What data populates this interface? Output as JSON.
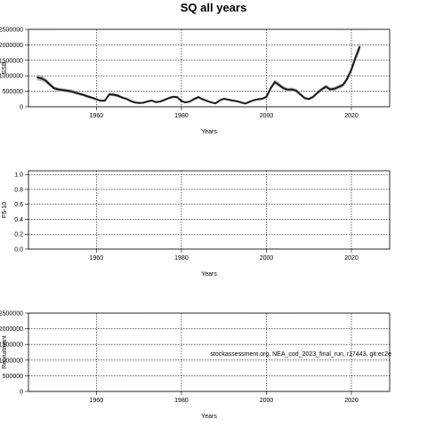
{
  "figure_title": "SQ all years",
  "chart_data": [
    {
      "type": "line",
      "panel": "SSB",
      "xlabel": "Years",
      "ylabel": "SSB",
      "xlim": [
        1944,
        2029
      ],
      "ylim": [
        0,
        2500000
      ],
      "xticks": [
        1960,
        1980,
        2000,
        2020
      ],
      "yticks": [
        0,
        500000,
        1000000,
        1500000,
        2000000,
        2500000
      ],
      "ytick_labels": [
        "0",
        "500000",
        "1000000",
        "1500000",
        "2000000",
        "2500000"
      ],
      "grid": true,
      "series": [
        {
          "x": [
            1946,
            1947,
            1948,
            1949,
            1950,
            1951,
            1952,
            1953,
            1954,
            1955,
            1956,
            1957,
            1958,
            1959,
            1960,
            1961,
            1962,
            1963,
            1964,
            1965,
            1966,
            1967,
            1968,
            1969,
            1970,
            1971,
            1972,
            1973,
            1974,
            1975,
            1976,
            1977,
            1978,
            1979,
            1980,
            1981,
            1982,
            1983,
            1984,
            1985,
            1986,
            1987,
            1988,
            1989,
            1990,
            1991,
            1992,
            1993,
            1994,
            1995,
            1996,
            1997,
            1998,
            1999,
            2000,
            2001,
            2002,
            2003,
            2004,
            2005,
            2006,
            2007,
            2008,
            2009,
            2010,
            2011,
            2012,
            2013,
            2014,
            2015,
            2016,
            2017,
            2018,
            2019,
            2020,
            2021,
            2022
          ],
          "y": [
            950000,
            920000,
            850000,
            720000,
            600000,
            560000,
            540000,
            520000,
            500000,
            460000,
            420000,
            380000,
            330000,
            290000,
            240000,
            190000,
            200000,
            400000,
            390000,
            360000,
            300000,
            260000,
            190000,
            140000,
            120000,
            130000,
            170000,
            200000,
            150000,
            170000,
            220000,
            280000,
            320000,
            310000,
            180000,
            140000,
            170000,
            250000,
            310000,
            240000,
            190000,
            140000,
            110000,
            200000,
            260000,
            230000,
            200000,
            180000,
            140000,
            100000,
            160000,
            210000,
            240000,
            260000,
            320000,
            600000,
            800000,
            700000,
            600000,
            550000,
            560000,
            520000,
            400000,
            280000,
            250000,
            320000,
            450000,
            560000,
            650000,
            560000,
            580000,
            640000,
            700000,
            900000,
            1200000,
            1600000,
            1950000
          ],
          "lower": [
            850000,
            830000,
            770000,
            650000,
            540000,
            500000,
            480000,
            460000,
            440000,
            400000,
            370000,
            330000,
            280000,
            250000,
            200000,
            160000,
            170000,
            350000,
            340000,
            310000,
            260000,
            220000,
            160000,
            110000,
            95000,
            105000,
            140000,
            170000,
            125000,
            140000,
            185000,
            240000,
            280000,
            270000,
            150000,
            115000,
            140000,
            210000,
            270000,
            205000,
            160000,
            115000,
            90000,
            170000,
            225000,
            195000,
            170000,
            150000,
            115000,
            80000,
            130000,
            180000,
            205000,
            225000,
            280000,
            540000,
            720000,
            630000,
            540000,
            490000,
            500000,
            460000,
            350000,
            240000,
            210000,
            280000,
            400000,
            500000,
            580000,
            500000,
            520000,
            570000,
            630000,
            820000,
            1100000,
            1480000,
            1800000
          ],
          "upper": [
            1050000,
            1010000,
            930000,
            790000,
            660000,
            620000,
            600000,
            580000,
            560000,
            520000,
            470000,
            430000,
            380000,
            330000,
            280000,
            220000,
            230000,
            450000,
            440000,
            410000,
            340000,
            300000,
            220000,
            170000,
            145000,
            155000,
            200000,
            230000,
            175000,
            200000,
            255000,
            320000,
            360000,
            350000,
            210000,
            165000,
            200000,
            290000,
            350000,
            275000,
            220000,
            165000,
            130000,
            230000,
            295000,
            265000,
            230000,
            210000,
            165000,
            120000,
            190000,
            240000,
            275000,
            295000,
            360000,
            660000,
            880000,
            770000,
            660000,
            610000,
            620000,
            580000,
            450000,
            320000,
            290000,
            360000,
            500000,
            620000,
            720000,
            620000,
            640000,
            710000,
            770000,
            980000,
            1300000,
            1720000,
            2100000
          ]
        }
      ]
    },
    {
      "type": "line",
      "panel": "F",
      "xlabel": "Years",
      "ylabel": "F5-10",
      "xlim": [
        1944,
        2029
      ],
      "ylim": [
        0,
        1.05
      ],
      "xticks": [
        1960,
        1980,
        2000,
        2020
      ],
      "yticks": [
        0.0,
        0.2,
        0.4,
        0.6,
        0.8,
        1.0
      ],
      "ytick_labels": [
        "0.0",
        "0.2",
        "0.4",
        "0.6",
        "0.8",
        "1.0"
      ],
      "grid": true
    },
    {
      "type": "line",
      "panel": "Recruitment",
      "xlabel": "Years",
      "ylabel": "Recruitment",
      "xlim": [
        1944,
        2029
      ],
      "ylim": [
        0,
        2500000
      ],
      "xticks": [
        1960,
        1980,
        2000,
        2020
      ],
      "yticks": [
        0,
        500000,
        1000000,
        1500000,
        2000000,
        2500000
      ],
      "ytick_labels": [
        "0",
        "500000",
        "1000000",
        "1500000",
        "2000000",
        "2500000"
      ],
      "grid": true,
      "annotation": "stockassessment.org, NEA_cod_2023_final_run, r17443, git:ec2e"
    }
  ]
}
